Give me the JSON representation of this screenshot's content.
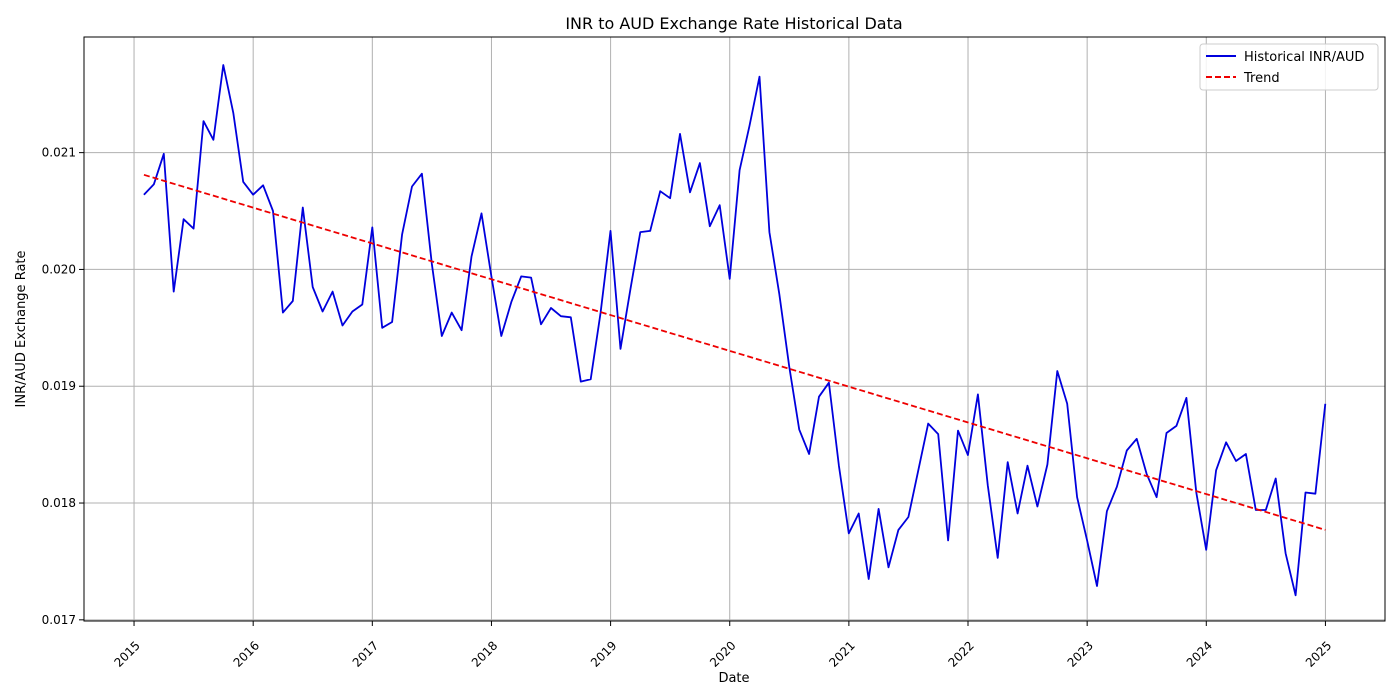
{
  "chart_data": {
    "type": "line",
    "title": "INR to AUD Exchange Rate Historical Data",
    "xlabel": "Date",
    "ylabel": "INR/AUD Exchange Rate",
    "grid": true,
    "legend_position": "top-right",
    "xlim": [
      2014.58,
      2025.5
    ],
    "ylim": [
      0.01699,
      0.02199
    ],
    "x_ticks": [
      2015,
      2016,
      2017,
      2018,
      2019,
      2020,
      2021,
      2022,
      2023,
      2024,
      2025
    ],
    "x_tick_labels": [
      "2015",
      "2016",
      "2017",
      "2018",
      "2019",
      "2020",
      "2021",
      "2022",
      "2023",
      "2024",
      "2025"
    ],
    "y_ticks": [
      0.017,
      0.018,
      0.019,
      0.02,
      0.021
    ],
    "y_tick_labels": [
      "0.017",
      "0.018",
      "0.019",
      "0.020",
      "0.021"
    ],
    "series": [
      {
        "name": "Historical INR/AUD",
        "color": "#0000dd",
        "style": "solid",
        "x_start": 2015.083,
        "x_step": 0.08333,
        "values": [
          0.02064,
          0.02073,
          0.02099,
          0.01981,
          0.02043,
          0.02035,
          0.02127,
          0.02111,
          0.02175,
          0.02134,
          0.02075,
          0.02064,
          0.02072,
          0.0205,
          0.01963,
          0.01973,
          0.02053,
          0.01985,
          0.01964,
          0.01981,
          0.01952,
          0.01964,
          0.0197,
          0.02036,
          0.0195,
          0.01955,
          0.0203,
          0.02071,
          0.02082,
          0.02005,
          0.01943,
          0.01963,
          0.01948,
          0.02011,
          0.02048,
          0.01994,
          0.01943,
          0.01972,
          0.01994,
          0.01993,
          0.01953,
          0.01967,
          0.0196,
          0.01959,
          0.01904,
          0.01906,
          0.01963,
          0.02033,
          0.01932,
          0.01983,
          0.02032,
          0.02033,
          0.02067,
          0.02061,
          0.02116,
          0.02066,
          0.02091,
          0.02037,
          0.02055,
          0.01992,
          0.02085,
          0.02123,
          0.02165,
          0.02032,
          0.01979,
          0.01917,
          0.01863,
          0.01842,
          0.01891,
          0.01903,
          0.01832,
          0.01774,
          0.01791,
          0.01735,
          0.01795,
          0.01745,
          0.01777,
          0.01788,
          0.01828,
          0.01868,
          0.01859,
          0.01768,
          0.01862,
          0.01841,
          0.01893,
          0.01815,
          0.01753,
          0.01835,
          0.01791,
          0.01832,
          0.01797,
          0.01833,
          0.01913,
          0.01885,
          0.01805,
          0.01768,
          0.01729,
          0.01793,
          0.01814,
          0.01845,
          0.01855,
          0.01825,
          0.01805,
          0.0186,
          0.01866,
          0.0189,
          0.01809,
          0.0176,
          0.01828,
          0.01852,
          0.01836,
          0.01842,
          0.01794,
          0.01794,
          0.01821,
          0.01757,
          0.01721,
          0.01809,
          0.01808,
          0.01885
        ]
      },
      {
        "name": "Trend",
        "color": "#ee0000",
        "style": "dashed",
        "x": [
          2015.083,
          2025.0
        ],
        "values": [
          0.02081,
          0.01777
        ]
      }
    ]
  }
}
